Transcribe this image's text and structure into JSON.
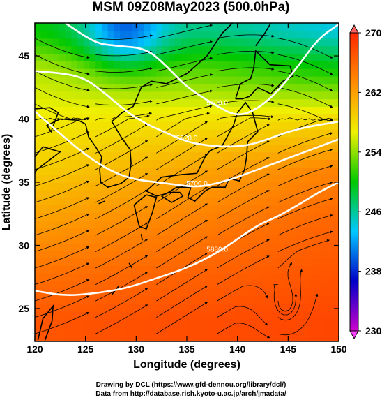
{
  "title": "MSM 09Z08May2023 (500.0hPa)",
  "credits": {
    "line1": "Drawing by DCL (https://www.gfd-dennou.org/library/dcl/)",
    "line2": "Data from http://database.rish.kyoto-u.ac.jp/arch/jmadata/"
  },
  "chart_data": {
    "type": "heatmap",
    "title": "MSM 09Z08May2023 (500.0hPa)",
    "xlabel": "Longitude (degrees)",
    "ylabel": "Latitude  (degrees)",
    "xlim": [
      120,
      150
    ],
    "ylim": [
      22.4,
      47.6
    ],
    "x_ticks": [
      120,
      125,
      130,
      135,
      140,
      145,
      150
    ],
    "y_ticks": [
      25,
      30,
      35,
      40,
      45
    ],
    "colorbar": {
      "min": 230,
      "max": 270,
      "ticks": [
        230,
        238,
        246,
        254,
        262,
        270
      ],
      "colors": [
        "#cc00cc",
        "#0000c8",
        "#00c8ff",
        "#00c800",
        "#f0f000",
        "#ff8c00",
        "#ff2800"
      ]
    },
    "contours": [
      {
        "label": "5400.0",
        "points": [
          [
            123,
            47.6
          ],
          [
            126,
            46
          ],
          [
            128,
            45.8
          ],
          [
            131,
            45.6
          ],
          [
            133,
            44.2
          ],
          [
            135,
            42.5
          ],
          [
            138,
            41
          ],
          [
            140,
            40.2
          ],
          [
            142,
            40.8
          ],
          [
            144,
            42.2
          ],
          [
            146,
            44.2
          ],
          [
            148,
            46.4
          ],
          [
            150,
            47.5
          ]
        ]
      },
      {
        "label": "5520.0",
        "points": [
          [
            120,
            43.8
          ],
          [
            123,
            43.6
          ],
          [
            125,
            43.2
          ],
          [
            127,
            42
          ],
          [
            129,
            40.6
          ],
          [
            131,
            39.6
          ],
          [
            133,
            38.9
          ],
          [
            135,
            38.2
          ],
          [
            137,
            37.9
          ],
          [
            139,
            37.8
          ],
          [
            141,
            37.9
          ],
          [
            143,
            38.4
          ],
          [
            145,
            39
          ],
          [
            147,
            39.4
          ],
          [
            150,
            39.8
          ]
        ]
      },
      {
        "label": "5700.0",
        "points": [
          [
            120,
            40.6
          ],
          [
            122,
            39.2
          ],
          [
            124,
            37.8
          ],
          [
            126,
            36.6
          ],
          [
            128,
            35.7
          ],
          [
            130,
            35.2
          ],
          [
            132,
            35
          ],
          [
            134,
            34.8
          ],
          [
            136,
            34.6
          ],
          [
            138,
            34.9
          ],
          [
            140,
            35.4
          ],
          [
            142,
            36
          ],
          [
            144,
            36.6
          ],
          [
            146,
            37.2
          ],
          [
            148,
            37.8
          ],
          [
            150,
            38.4
          ]
        ]
      },
      {
        "label": "5880.0",
        "points": [
          [
            120,
            26.4
          ],
          [
            123,
            26
          ],
          [
            126,
            26.2
          ],
          [
            129,
            26.6
          ],
          [
            132,
            27.4
          ],
          [
            135,
            28.2
          ],
          [
            138,
            29.4
          ],
          [
            140,
            30.5
          ],
          [
            142,
            31.6
          ],
          [
            144,
            32.3
          ],
          [
            146,
            33.2
          ],
          [
            148,
            34.2
          ],
          [
            150,
            35
          ]
        ]
      }
    ],
    "contour_labels_visible": [
      "5400.0",
      "5520.0",
      "5700.0",
      "5880.0"
    ],
    "temperature_gradient_K": [
      {
        "lat": 47,
        "west": 250,
        "east": 244
      },
      {
        "lat": 44,
        "west": 255,
        "east": 250
      },
      {
        "lat": 40,
        "west": 257,
        "east": 258
      },
      {
        "lat": 36,
        "west": 259,
        "east": 264
      },
      {
        "lat": 32,
        "west": 262,
        "east": 266
      },
      {
        "lat": 28,
        "west": 265,
        "east": 267
      },
      {
        "lat": 24,
        "west": 267,
        "east": 268
      }
    ],
    "cold_core": {
      "lon": 129,
      "lat": 47.5,
      "value_K": 240
    },
    "wind_flow": "predominantly westerly to west-southwesterly; cyclonic swirl near 145E 24N"
  }
}
